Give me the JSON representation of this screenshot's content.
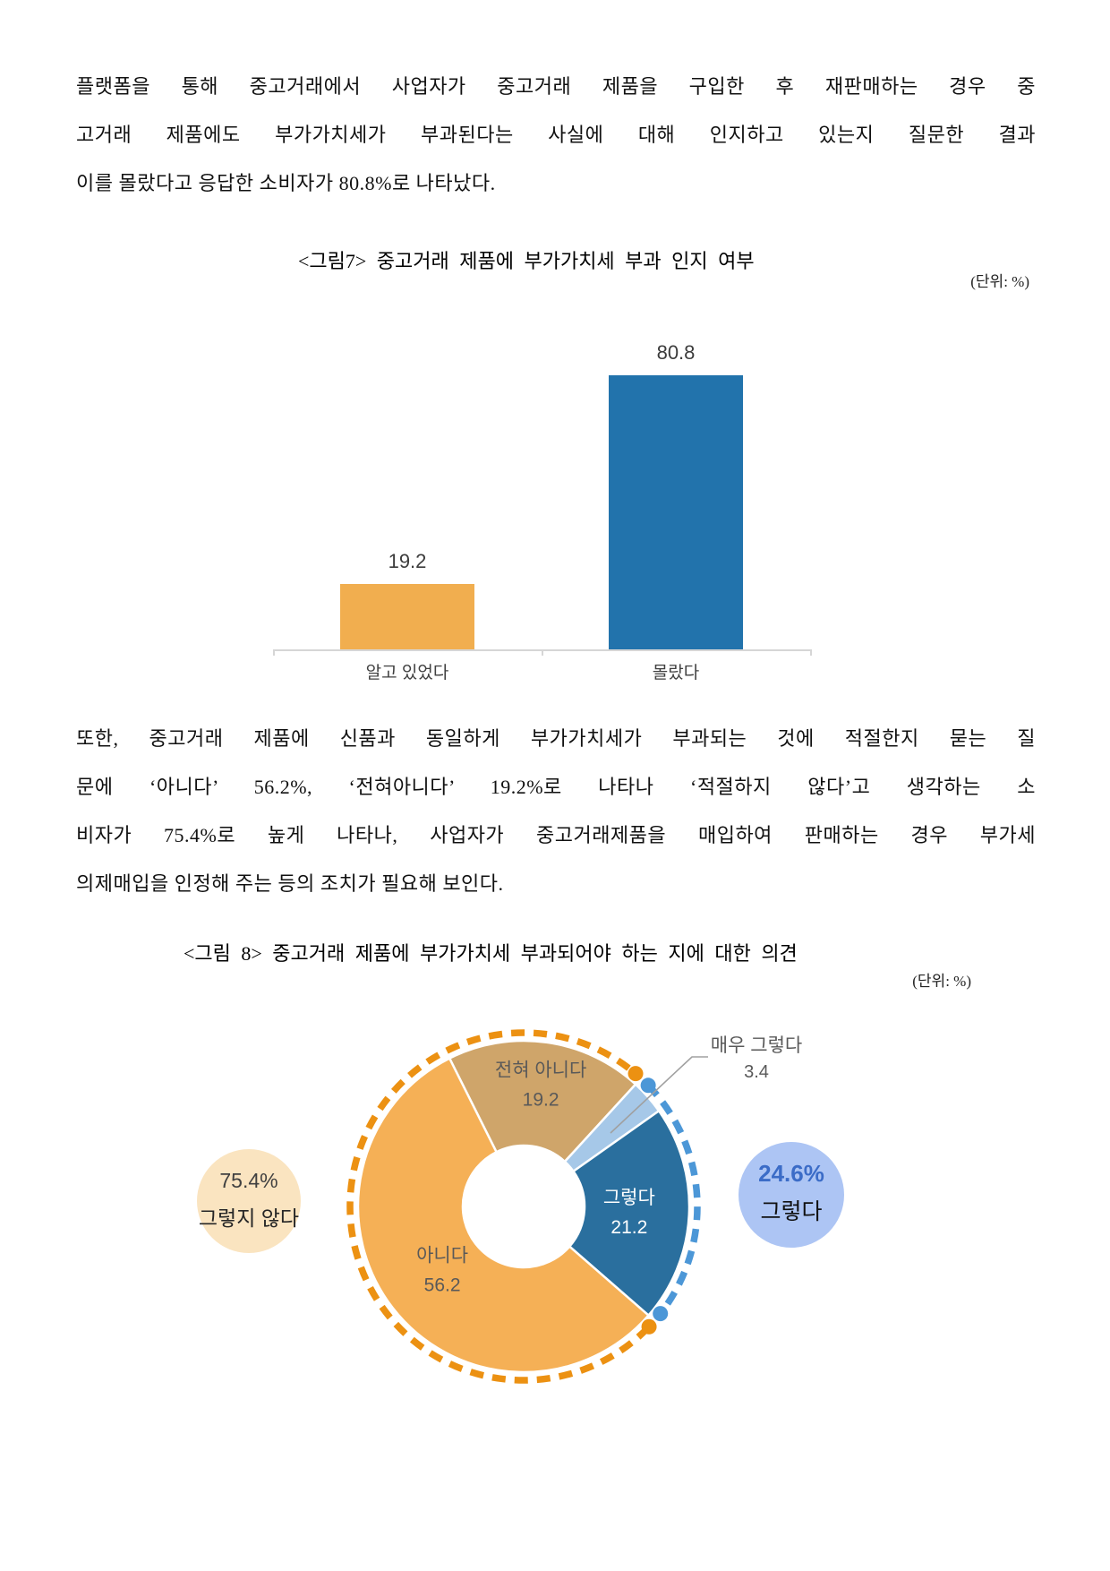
{
  "paragraphs": {
    "p1": {
      "lines": [
        "플랫폼을 통해 중고거래에서 사업자가 중고거래 제품을 구입한 후 재판매하는 경우 중",
        "고거래 제품에도 부가가치세가 부과된다는 사실에 대해 인지하고 있는지 질문한 결과",
        "이를 몰랐다고 응답한 소비자가 80.8%로 나타났다."
      ]
    },
    "p2": {
      "lines": [
        "또한, 중고거래 제품에 신품과 동일하게 부가가치세가 부과되는 것에 적절한지 묻는 질",
        "문에 ‘아니다’ 56.2%, ‘전혀아니다’ 19.2%로 나타나 ‘적절하지 않다’고 생각하는 소",
        "비자가 75.4%로 높게 나타나, 사업자가 중고거래제품을 매입하여 판매하는 경우 부가세",
        "의제매입을 인정해 주는 등의 조치가 필요해 보인다."
      ]
    }
  },
  "chart_data": [
    {
      "type": "bar",
      "title": "<그림7> 중고거래 제품에 부가가치세 부과 인지 여부",
      "unit": "(단위: %)",
      "categories": [
        "알고 있었다",
        "몰랐다"
      ],
      "values": [
        19.2,
        80.8
      ],
      "colors": [
        "#F1AE4F",
        "#2273AC"
      ],
      "ylim": [
        0,
        90
      ],
      "grid": false,
      "value_labels": true,
      "axis_color": "#D6D6D6"
    },
    {
      "type": "pie",
      "donut": true,
      "title": "<그림 8> 중고거래 제품에 부가가치세 부과되어야 하는 지에 대한 의견",
      "unit": "(단위: %)",
      "start_angle_deg": -26.6,
      "clockwise": true,
      "segments": [
        {
          "label": "전혀 아니다",
          "value": 19.2,
          "color": "#CFA56A",
          "text_color": "#595959"
        },
        {
          "label": "매우 그렇다",
          "value": 3.4,
          "color": "#A6C8E8",
          "text_color": "#595959",
          "callout": true
        },
        {
          "label": "그렇다",
          "value": 21.2,
          "color": "#2A6F9E",
          "text_color": "#FFFFFF"
        },
        {
          "label": "아니다",
          "value": 56.2,
          "color": "#F5B056",
          "text_color": "#595959"
        }
      ],
      "groups": [
        {
          "pct": "75.4%",
          "label": "그렇지 않다",
          "ring_color": "#EC9112",
          "bubble_fill": "#FAE4C0"
        },
        {
          "pct": "24.6%",
          "label": "그렇다",
          "ring_color": "#4C97D7",
          "bubble_fill": "#ADC5F4"
        }
      ],
      "leader_line_color": "#A0A0A0"
    }
  ]
}
